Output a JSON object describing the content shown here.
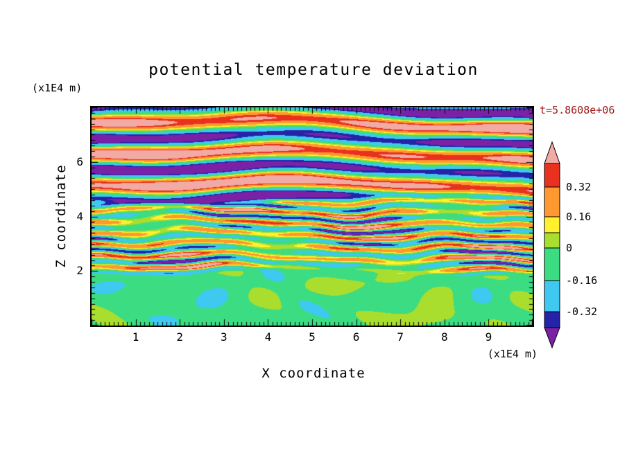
{
  "page": {
    "background": "#FFFFFF"
  },
  "chart_data": {
    "type": "heatmap",
    "title": "potential temperature deviation",
    "xlabel": "X coordinate",
    "ylabel": "Z coordinate",
    "x_unit": "(x1E4 m)",
    "z_unit": "(x1E4 m)",
    "timestamp": "t=5.8608e+06",
    "timestamp_color": "#A01818",
    "xlim": [
      0,
      10
    ],
    "zlim": [
      0,
      8
    ],
    "x_ticks": [
      1,
      2,
      3,
      4,
      5,
      6,
      7,
      8,
      9
    ],
    "z_ticks": [
      2,
      4,
      6
    ],
    "grid": false,
    "legend_position": "right-colorbar",
    "colorbar": {
      "tick_labels": [
        "0.32",
        "0.16",
        "0",
        "-0.16",
        "-0.32"
      ],
      "levels": [
        -0.4,
        -0.32,
        -0.16,
        0,
        0.08,
        0.16,
        0.32,
        0.4
      ],
      "colors": [
        "#7B21A5",
        "#2523A8",
        "#3FC8F0",
        "#3CDC82",
        "#A9DD2E",
        "#FFF12E",
        "#FF9830",
        "#E8321F",
        "#F2AAA4"
      ],
      "color_names": [
        "purple-below-range",
        "navy",
        "cyan",
        "green",
        "yellow-green",
        "yellow",
        "orange",
        "red",
        "pink-above-range"
      ]
    },
    "field_model": {
      "description": "Turbulent stratified potential-temperature-deviation field: broad pink/purple gravity-wave bands aloft (z>4.6), fine multicoloured wavy stripes (red/orange/yellow/green/cyan/navy) at mid-levels (2<z<4.6), smooth green layer with yellow-green blobs below z=2.",
      "bottom": {
        "zmax": 2.0,
        "base": -0.06,
        "amp": 0.11
      },
      "middle": {
        "zmax": 4.6,
        "wavelength": 0.42,
        "amp": 0.3
      },
      "top": {
        "wavelength": 1.12,
        "amp": 0.48
      }
    }
  }
}
